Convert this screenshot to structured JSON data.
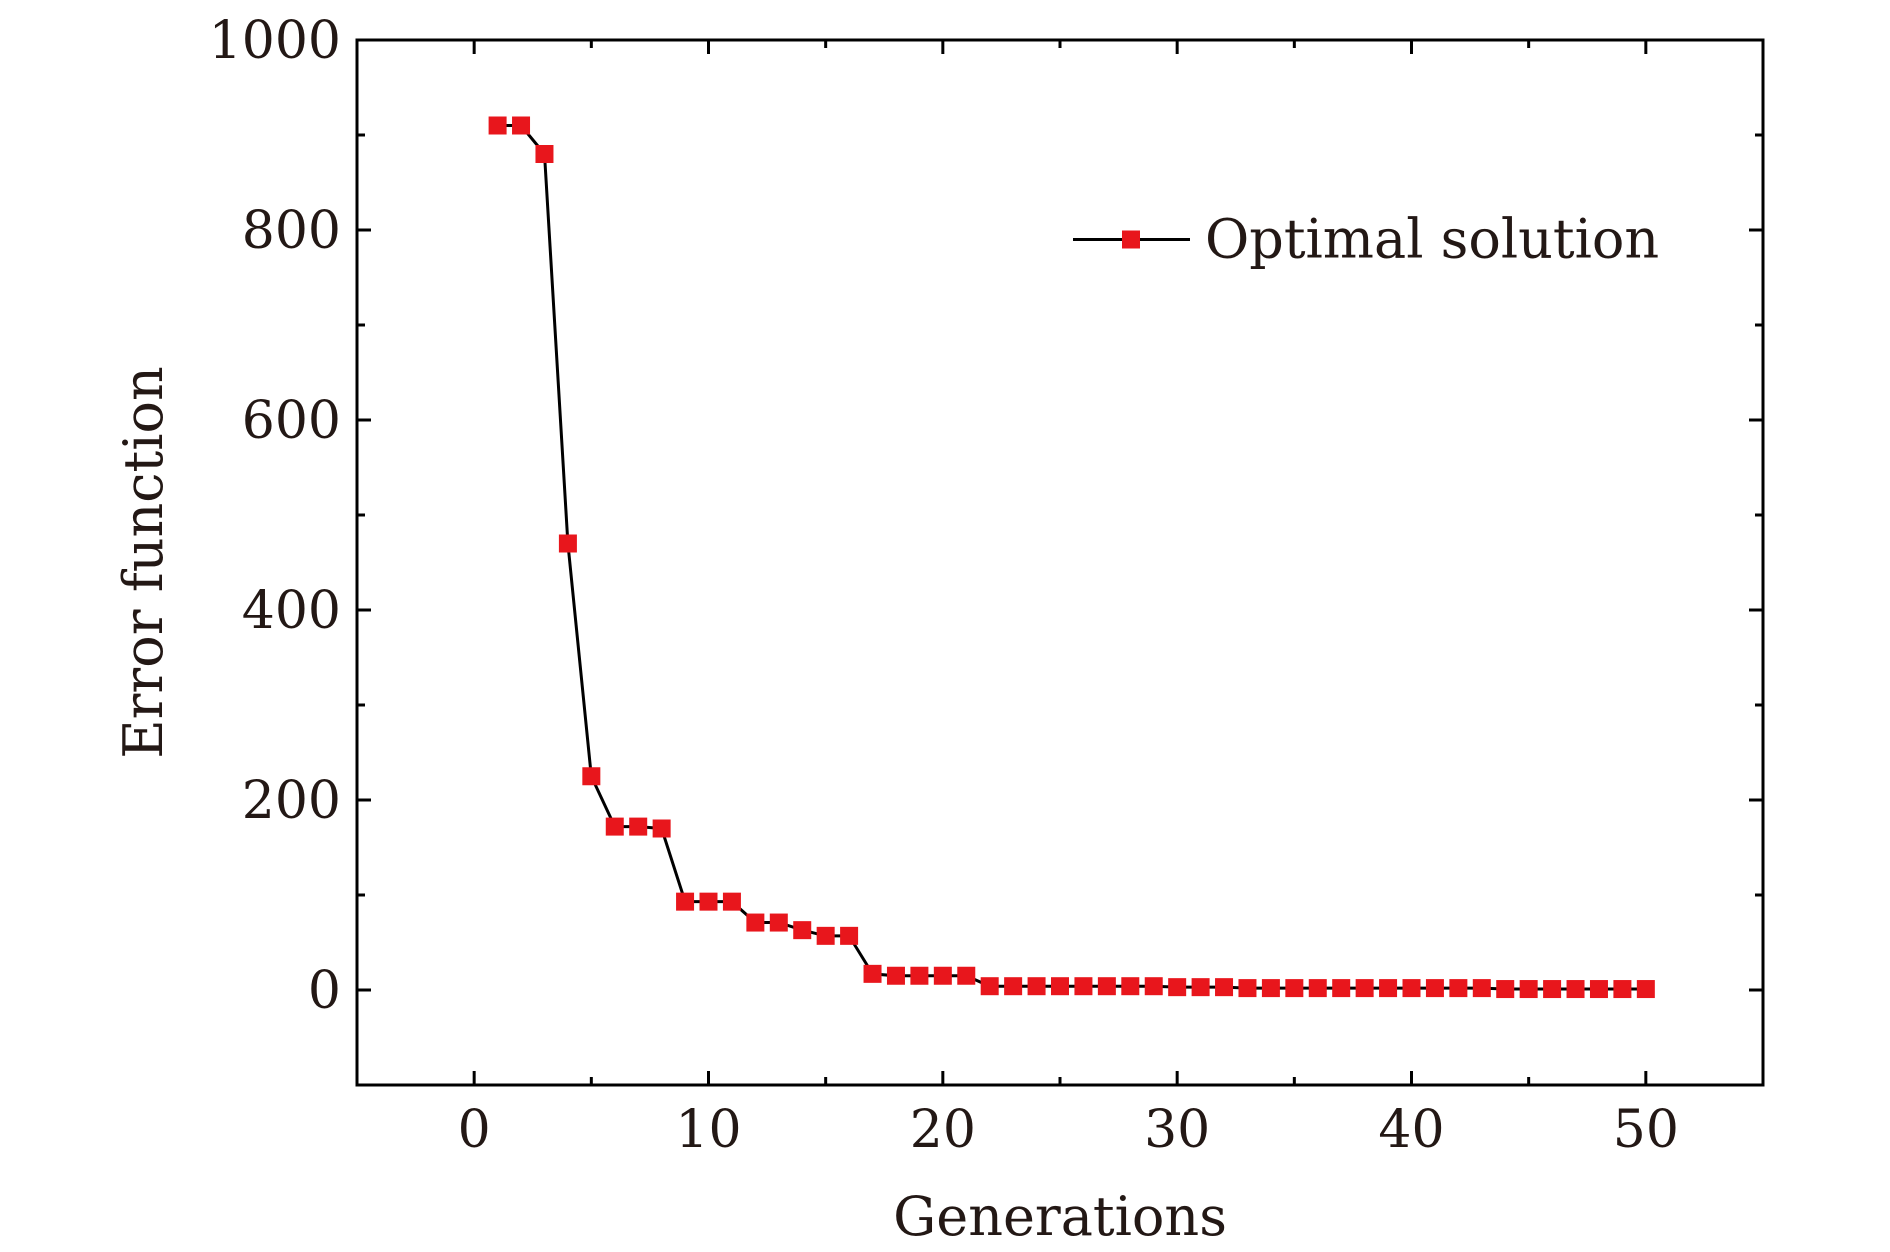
{
  "chart_data": {
    "type": "line",
    "title": "",
    "xlabel": "Generations",
    "ylabel": "Error function",
    "xlim": [
      -5,
      55
    ],
    "ylim": [
      -100,
      1000
    ],
    "x_major_ticks": [
      0,
      10,
      20,
      30,
      40,
      50
    ],
    "x_tick_labels": [
      "0",
      "10",
      "20",
      "30",
      "40",
      "50"
    ],
    "x_minor_ticks": [
      5,
      15,
      25,
      35,
      45
    ],
    "y_major_ticks": [
      0,
      200,
      400,
      600,
      800,
      1000
    ],
    "y_tick_labels": [
      "0",
      "200",
      "400",
      "600",
      "800",
      "1000"
    ],
    "y_minor_ticks": [
      100,
      300,
      500,
      700,
      900
    ],
    "grid": false,
    "legend_position": "top-right",
    "series": [
      {
        "name": "Optimal solution",
        "line_color": "#000000",
        "marker": "square",
        "marker_color": "#e8161c",
        "x": [
          1,
          2,
          3,
          4,
          5,
          6,
          7,
          8,
          9,
          10,
          11,
          12,
          13,
          14,
          15,
          16,
          17,
          18,
          19,
          20,
          21,
          22,
          23,
          24,
          25,
          26,
          27,
          28,
          29,
          30,
          31,
          32,
          33,
          34,
          35,
          36,
          37,
          38,
          39,
          40,
          41,
          42,
          43,
          44,
          45,
          46,
          47,
          48,
          49,
          50
        ],
        "values": [
          910,
          910,
          880,
          470,
          225,
          172,
          172,
          170,
          93,
          93,
          93,
          71,
          71,
          63,
          57,
          57,
          17,
          15,
          15,
          15,
          15,
          4,
          4,
          4,
          4,
          4,
          4,
          4,
          4,
          3,
          3,
          3,
          2,
          2,
          2,
          2,
          2,
          2,
          2,
          2,
          2,
          2,
          2,
          1,
          1,
          1,
          1,
          1,
          1,
          1
        ]
      }
    ]
  }
}
